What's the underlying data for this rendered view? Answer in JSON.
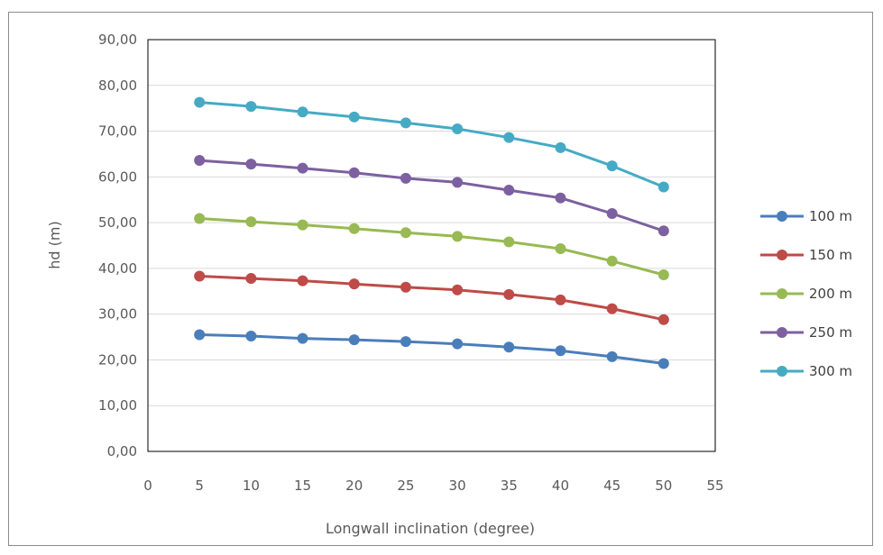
{
  "chart_data": {
    "type": "line",
    "xlabel": "Longwall inclination (degree)",
    "ylabel": "hd (m)",
    "xlim": [
      0,
      55
    ],
    "ylim": [
      0,
      90
    ],
    "x_ticks": [
      "0",
      "5",
      "10",
      "15",
      "20",
      "25",
      "30",
      "35",
      "40",
      "45",
      "50",
      "55"
    ],
    "y_ticks": [
      "0,00",
      "10,00",
      "20,00",
      "30,00",
      "40,00",
      "50,00",
      "60,00",
      "70,00",
      "80,00",
      "90,00"
    ],
    "grid": true,
    "legend_position": "right",
    "x": [
      5,
      10,
      15,
      20,
      25,
      30,
      35,
      40,
      45,
      50
    ],
    "series": [
      {
        "name": "100 m",
        "color": "#4a7ebb",
        "values": [
          25.5,
          25.2,
          24.7,
          24.4,
          24.0,
          23.5,
          22.8,
          22.0,
          20.7,
          19.2
        ]
      },
      {
        "name": "150 m",
        "color": "#be4b48",
        "values": [
          38.3,
          37.8,
          37.3,
          36.6,
          35.9,
          35.3,
          34.3,
          33.1,
          31.2,
          28.8
        ]
      },
      {
        "name": "200 m",
        "color": "#98b954",
        "values": [
          50.9,
          50.2,
          49.5,
          48.7,
          47.8,
          47.0,
          45.8,
          44.3,
          41.6,
          38.6
        ]
      },
      {
        "name": "250 m",
        "color": "#7d60a0",
        "values": [
          63.6,
          62.8,
          61.9,
          60.9,
          59.7,
          58.8,
          57.1,
          55.4,
          52.0,
          48.2
        ]
      },
      {
        "name": "300 m",
        "color": "#46aac5",
        "values": [
          76.3,
          75.4,
          74.2,
          73.1,
          71.8,
          70.5,
          68.6,
          66.4,
          62.4,
          57.8
        ]
      }
    ]
  }
}
